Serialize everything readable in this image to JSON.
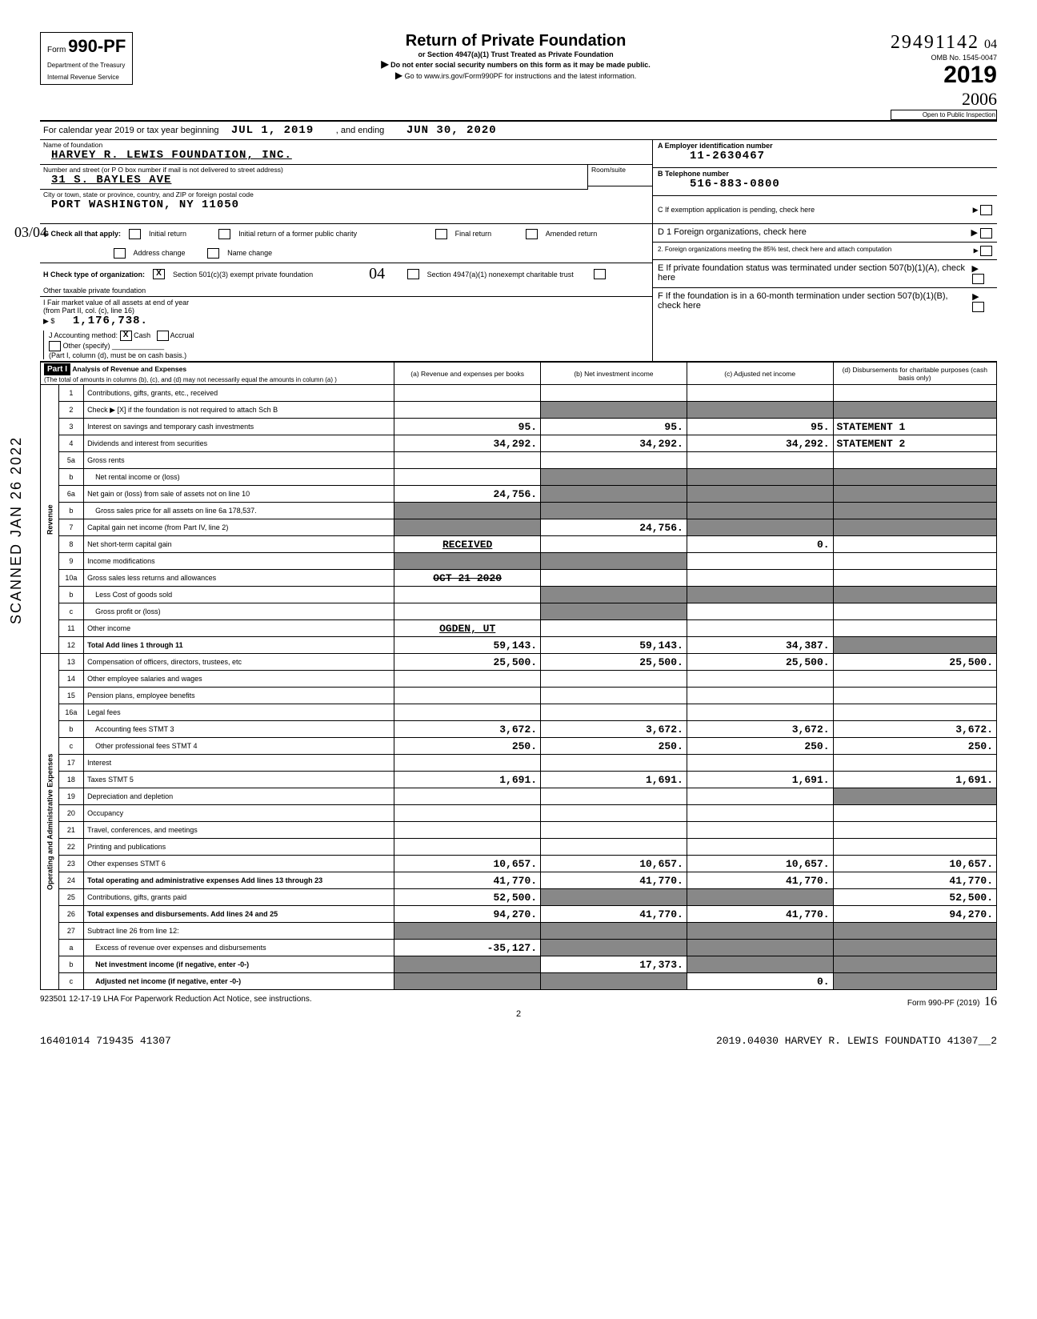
{
  "form": {
    "number": "990-PF",
    "dept": "Department of the Treasury",
    "irs": "Internal Revenue Service",
    "title": "Return of Private Foundation",
    "subtitle": "or Section 4947(a)(1) Trust Treated as Private Foundation",
    "note1": "Do not enter social security numbers on this form as it may be made public.",
    "note2": "Go to www.irs.gov/Form990PF for instructions and the latest information.",
    "omb": "OMB No. 1545-0047",
    "year": "2019",
    "inspection": "Open to Public Inspection",
    "stamp_no": "29491142",
    "hand1": "04",
    "hand2": "2006"
  },
  "period": {
    "label": "For calendar year 2019 or tax year beginning",
    "begin": "JUL 1, 2019",
    "mid": ", and ending",
    "end": "JUN 30, 2020"
  },
  "entity": {
    "name_label": "Name of foundation",
    "name": "HARVEY R. LEWIS FOUNDATION, INC.",
    "addr_label": "Number and street (or P O  box number if mail is not delivered to street address)",
    "room_label": "Room/suite",
    "street": "31 S. BAYLES AVE",
    "city_label": "City or town, state or province, country, and ZIP or foreign postal code",
    "city": "PORT WASHINGTON, NY   11050",
    "ein_label": "A Employer identification number",
    "ein": "11-2630467",
    "tel_label": "B Telephone number",
    "tel": "516-883-0800",
    "c_label": "C  If exemption application is pending, check here"
  },
  "checks": {
    "G": "G  Check all that apply:",
    "g_opts": [
      "Initial return",
      "Final return",
      "Address change",
      "Initial return of a former public charity",
      "Amended return",
      "Name change"
    ],
    "H": "H   Check type of organization:",
    "h1": "Section 501(c)(3) exempt private foundation",
    "h2": "Section 4947(a)(1) nonexempt charitable trust",
    "h3": "Other taxable private foundation",
    "I": "I   Fair market value of all assets at end of year",
    "I2": "(from Part II, col. (c), line 16)",
    "I_val": "1,176,738.",
    "J": "J   Accounting method:",
    "j_cash": "Cash",
    "j_acc": "Accrual",
    "j_other": "Other (specify)",
    "j_note": "(Part I, column (d), must be on cash basis.)",
    "D1": "D 1  Foreign organizations, check here",
    "D2": "2. Foreign organizations meeting the 85% test, check here and attach computation",
    "E": "E  If private foundation status was terminated under section 507(b)(1)(A), check here",
    "F": "F  If the foundation is in a 60-month termination under section 507(b)(1)(B), check here"
  },
  "part1": {
    "header": "Part I",
    "title": "Analysis of Revenue and Expenses",
    "subtitle": "(The total of amounts in columns (b), (c), and (d) may not necessarily equal the amounts in column (a) )",
    "cols": {
      "a": "(a) Revenue and expenses per books",
      "b": "(b) Net investment income",
      "c": "(c) Adjusted net income",
      "d": "(d) Disbursements for charitable purposes (cash basis only)"
    },
    "sections": {
      "rev": "Revenue",
      "exp": "Operating and Administrative Expenses"
    }
  },
  "rows": [
    {
      "n": "1",
      "d": "Contributions, gifts, grants, etc., received",
      "a": "",
      "b": "",
      "c": "",
      "dd": ""
    },
    {
      "n": "2",
      "d": "Check ▶ [X]  if the foundation is not required to attach Sch  B",
      "a": "",
      "b": "",
      "c": "",
      "dd": "",
      "shade_bcd": true
    },
    {
      "n": "3",
      "d": "Interest on savings and temporary cash investments",
      "a": "95.",
      "b": "95.",
      "c": "95.",
      "dd": "STATEMENT 1"
    },
    {
      "n": "4",
      "d": "Dividends and interest from securities",
      "a": "34,292.",
      "b": "34,292.",
      "c": "34,292.",
      "dd": "STATEMENT 2"
    },
    {
      "n": "5a",
      "d": "Gross rents",
      "a": "",
      "b": "",
      "c": "",
      "dd": ""
    },
    {
      "n": "b",
      "d": "Net rental income or (loss)",
      "a": "",
      "b": "",
      "c": "",
      "dd": "",
      "shade_bcd": true,
      "indent": true
    },
    {
      "n": "6a",
      "d": "Net gain or (loss) from sale of assets not on line 10",
      "a": "24,756.",
      "b": "",
      "c": "",
      "dd": "",
      "shade_bcd": true
    },
    {
      "n": "b",
      "d": "Gross sales price for all assets on line 6a         178,537.",
      "a": "",
      "b": "",
      "c": "",
      "dd": "",
      "shade_all": true,
      "indent": true
    },
    {
      "n": "7",
      "d": "Capital gain net income (from Part IV, line 2)",
      "a": "",
      "b": "24,756.",
      "c": "",
      "dd": "",
      "shade_a": true,
      "shade_cd": true
    },
    {
      "n": "8",
      "d": "Net short-term capital gain",
      "a": "RECEIVED",
      "b": "",
      "c": "0.",
      "dd": "",
      "stamp": true,
      "shade_ab": false
    },
    {
      "n": "9",
      "d": "Income modifications",
      "a": "",
      "b": "",
      "c": "",
      "dd": "",
      "shade_ab": true
    },
    {
      "n": "10a",
      "d": "Gross sales less returns and allowances",
      "a": "OCT 21 2020",
      "b": "",
      "c": "",
      "dd": "",
      "stamp": true,
      "strike": true
    },
    {
      "n": "b",
      "d": "Less  Cost of goods sold",
      "a": "",
      "b": "",
      "c": "",
      "dd": "",
      "indent": true,
      "shade_bcd": true
    },
    {
      "n": "c",
      "d": "Gross profit or (loss)",
      "a": "",
      "b": "",
      "c": "",
      "dd": "",
      "indent": true,
      "shade_b": true
    },
    {
      "n": "11",
      "d": "Other income",
      "a": "OGDEN, UT",
      "b": "",
      "c": "",
      "dd": "",
      "stamp": true
    },
    {
      "n": "12",
      "d": "Total  Add lines 1 through 11",
      "a": "59,143.",
      "b": "59,143.",
      "c": "34,387.",
      "dd": "",
      "bold": true,
      "shade_d": true
    },
    {
      "n": "13",
      "d": "Compensation of officers, directors, trustees, etc",
      "a": "25,500.",
      "b": "25,500.",
      "c": "25,500.",
      "dd": "25,500."
    },
    {
      "n": "14",
      "d": "Other employee salaries and wages",
      "a": "",
      "b": "",
      "c": "",
      "dd": ""
    },
    {
      "n": "15",
      "d": "Pension plans, employee benefits",
      "a": "",
      "b": "",
      "c": "",
      "dd": ""
    },
    {
      "n": "16a",
      "d": "Legal fees",
      "a": "",
      "b": "",
      "c": "",
      "dd": ""
    },
    {
      "n": "b",
      "d": "Accounting fees                  STMT 3",
      "a": "3,672.",
      "b": "3,672.",
      "c": "3,672.",
      "dd": "3,672.",
      "indent": true
    },
    {
      "n": "c",
      "d": "Other professional fees          STMT 4",
      "a": "250.",
      "b": "250.",
      "c": "250.",
      "dd": "250.",
      "indent": true
    },
    {
      "n": "17",
      "d": "Interest",
      "a": "",
      "b": "",
      "c": "",
      "dd": ""
    },
    {
      "n": "18",
      "d": "Taxes                            STMT 5",
      "a": "1,691.",
      "b": "1,691.",
      "c": "1,691.",
      "dd": "1,691."
    },
    {
      "n": "19",
      "d": "Depreciation and depletion",
      "a": "",
      "b": "",
      "c": "",
      "dd": "",
      "shade_d": true
    },
    {
      "n": "20",
      "d": "Occupancy",
      "a": "",
      "b": "",
      "c": "",
      "dd": ""
    },
    {
      "n": "21",
      "d": "Travel, conferences, and meetings",
      "a": "",
      "b": "",
      "c": "",
      "dd": ""
    },
    {
      "n": "22",
      "d": "Printing and publications",
      "a": "",
      "b": "",
      "c": "",
      "dd": ""
    },
    {
      "n": "23",
      "d": "Other expenses                   STMT 6",
      "a": "10,657.",
      "b": "10,657.",
      "c": "10,657.",
      "dd": "10,657."
    },
    {
      "n": "24",
      "d": "Total operating and administrative expenses  Add lines 13 through 23",
      "a": "41,770.",
      "b": "41,770.",
      "c": "41,770.",
      "dd": "41,770.",
      "bold": true
    },
    {
      "n": "25",
      "d": "Contributions, gifts, grants paid",
      "a": "52,500.",
      "b": "",
      "c": "",
      "dd": "52,500.",
      "shade_bc": true
    },
    {
      "n": "26",
      "d": "Total expenses and disbursements. Add lines 24 and 25",
      "a": "94,270.",
      "b": "41,770.",
      "c": "41,770.",
      "dd": "94,270.",
      "bold": true
    },
    {
      "n": "27",
      "d": "Subtract line 26 from line 12:",
      "a": "",
      "b": "",
      "c": "",
      "dd": "",
      "shade_all": true
    },
    {
      "n": "a",
      "d": "Excess of revenue over expenses and disbursements",
      "a": "-35,127.",
      "b": "",
      "c": "",
      "dd": "",
      "indent": true,
      "shade_bcd": true
    },
    {
      "n": "b",
      "d": "Net investment income (if negative, enter -0-)",
      "a": "",
      "b": "17,373.",
      "c": "",
      "dd": "",
      "indent": true,
      "bold": true,
      "shade_acd": true
    },
    {
      "n": "c",
      "d": "Adjusted net income (if negative, enter -0-)",
      "a": "",
      "b": "",
      "c": "0.",
      "dd": "",
      "indent": true,
      "bold": true,
      "shade_abd": true
    }
  ],
  "footer": {
    "left": "923501 12-17-19   LHA  For Paperwork Reduction Act Notice, see instructions.",
    "right": "Form 990-PF (2019)",
    "page": "2",
    "bl": "16401014 719435 41307",
    "br": "2019.04030 HARVEY R. LEWIS FOUNDATIO 41307__2",
    "hand_r": "16"
  },
  "side_stamp": "SCANNED JAN 26 2022",
  "margin_note": "03/04"
}
